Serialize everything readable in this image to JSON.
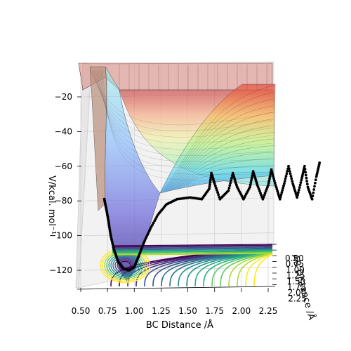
{
  "chart_data": {
    "type": "surface3d",
    "xlabel": "BC Distance /Å",
    "ylabel": "AB Distance /Å",
    "zlabel": "V/kcal. mol⁻¹",
    "x_ticks": [
      "0.50",
      "0.75",
      "1.00",
      "1.25",
      "1.50",
      "1.75",
      "2.00",
      "2.25"
    ],
    "y_ticks": [
      "0.50",
      "0.75",
      "1.00",
      "1.25",
      "1.50",
      "1.75",
      "2.00",
      "2.25"
    ],
    "z_ticks": [
      "−120",
      "−100",
      "−80",
      "−60",
      "−40",
      "−20"
    ],
    "xlim": [
      0.45,
      2.4
    ],
    "zlim": [
      -132,
      -10
    ],
    "grid": true,
    "colormap_surface": "jet",
    "colormap_contour": "viridis",
    "trajectory": {
      "color": "#000000",
      "points": [
        [
          0.72,
          -79
        ],
        [
          0.74,
          -85
        ],
        [
          0.76,
          -92
        ],
        [
          0.78,
          -100
        ],
        [
          0.81,
          -108
        ],
        [
          0.85,
          -115
        ],
        [
          0.9,
          -119
        ],
        [
          0.95,
          -120
        ],
        [
          1.0,
          -118
        ],
        [
          1.04,
          -112
        ],
        [
          1.09,
          -104
        ],
        [
          1.15,
          -96
        ],
        [
          1.22,
          -88
        ],
        [
          1.3,
          -82
        ],
        [
          1.4,
          -79
        ],
        [
          1.52,
          -78
        ],
        [
          1.63,
          -79
        ],
        [
          1.7,
          -73
        ],
        [
          1.72,
          -64
        ],
        [
          1.75,
          -70
        ],
        [
          1.8,
          -79
        ],
        [
          1.88,
          -74
        ],
        [
          1.92,
          -64
        ],
        [
          1.96,
          -72
        ],
        [
          2.02,
          -79
        ],
        [
          2.08,
          -72
        ],
        [
          2.11,
          -63
        ],
        [
          2.15,
          -71
        ],
        [
          2.2,
          -79
        ],
        [
          2.25,
          -71
        ],
        [
          2.28,
          -62
        ],
        [
          2.32,
          -71
        ],
        [
          2.36,
          -79
        ],
        [
          2.4,
          -70
        ],
        [
          2.44,
          -60
        ],
        [
          2.48,
          -70
        ],
        [
          2.52,
          -78
        ],
        [
          2.56,
          -68
        ],
        [
          2.59,
          -60
        ],
        [
          2.62,
          -72
        ],
        [
          2.66,
          -79
        ],
        [
          2.7,
          -66
        ],
        [
          2.73,
          -58
        ]
      ]
    }
  }
}
